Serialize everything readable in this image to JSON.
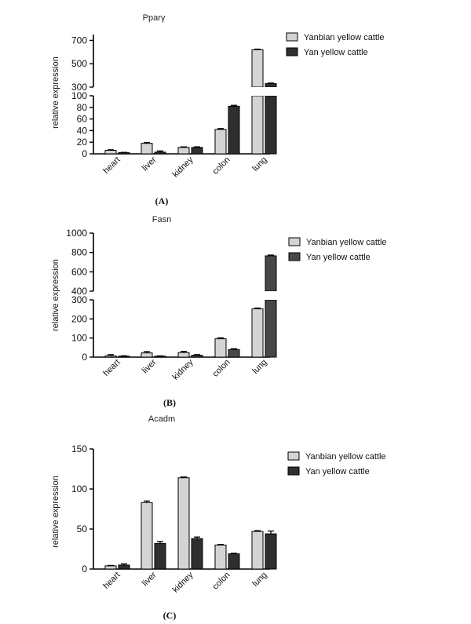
{
  "chart_data": [
    {
      "type": "bar",
      "panel_label": "(A)",
      "title": "Pparγ",
      "ylabel": "relative expression",
      "categories": [
        "heart",
        "liver",
        "kidney",
        "colon",
        "lung"
      ],
      "series": [
        {
          "name": "Yanbian yellow cattle",
          "color": "#d4d4d4",
          "values": [
            6,
            18,
            11,
            42,
            620
          ],
          "errors": [
            1,
            1.5,
            1,
            1.5,
            5
          ]
        },
        {
          "name": "Yan yellow cattle",
          "color": "#2f2f2f",
          "values": [
            2,
            3,
            11,
            82,
            330
          ],
          "errors": [
            0.5,
            2,
            1,
            1.5,
            5
          ]
        }
      ],
      "axis_break": {
        "lower": [
          0,
          100
        ],
        "upper": [
          300,
          750
        ]
      },
      "yticks_lower": [
        0,
        20,
        40,
        60,
        80,
        100
      ],
      "yticks_upper": [
        300,
        500,
        700
      ],
      "legend_position": "top-right",
      "grid": false
    },
    {
      "type": "bar",
      "panel_label": "(B)",
      "title": "Fasn",
      "ylabel": "relative expression",
      "categories": [
        "heart",
        "liver",
        "kidney",
        "colon",
        "lung"
      ],
      "series": [
        {
          "name": "Yanbian yellow cattle",
          "color": "#d4d4d4",
          "values": [
            7,
            22,
            24,
            96,
            253
          ],
          "errors": [
            6,
            7,
            6,
            5,
            4
          ]
        },
        {
          "name": "Yan yellow cattle",
          "color": "#474747",
          "values": [
            5,
            5,
            10,
            40,
            765
          ],
          "errors": [
            2,
            1.5,
            3,
            4,
            8
          ]
        }
      ],
      "axis_break": {
        "lower": [
          0,
          300
        ],
        "upper": [
          400,
          1000
        ]
      },
      "yticks_lower": [
        0,
        100,
        200,
        300
      ],
      "yticks_upper": [
        400,
        600,
        800,
        1000
      ],
      "legend_position": "top-right",
      "grid": false
    },
    {
      "type": "bar",
      "panel_label": "(C)",
      "title": "Acadm",
      "ylabel": "relative expression",
      "categories": [
        "heart",
        "liver",
        "kidney",
        "colon",
        "lung"
      ],
      "series": [
        {
          "name": "Yanbian yellow cattle",
          "color": "#d4d4d4",
          "values": [
            4,
            83,
            114,
            30,
            47
          ],
          "errors": [
            0.5,
            2,
            1,
            0.7,
            1
          ]
        },
        {
          "name": "Yan yellow cattle",
          "color": "#2f2f2f",
          "values": [
            5,
            32,
            38,
            19,
            44
          ],
          "errors": [
            1.5,
            2.5,
            2,
            0.7,
            3.5
          ]
        }
      ],
      "ylim": [
        0,
        150
      ],
      "yticks": [
        0,
        50,
        100,
        150
      ],
      "legend_position": "top-right",
      "grid": false
    }
  ]
}
